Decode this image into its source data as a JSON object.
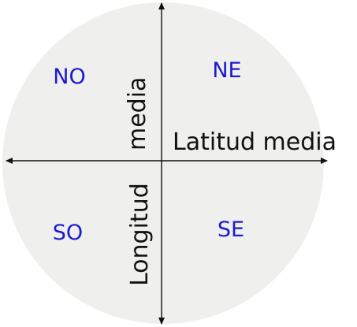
{
  "diagram": {
    "quadrants": {
      "nw": "NO",
      "ne": "NE",
      "sw": "SO",
      "se": "SE"
    },
    "axes": {
      "horizontal_label": "Latitud media",
      "vertical_label_upper": "media",
      "vertical_label_lower": "Longitud"
    },
    "colors": {
      "disc": "#efefee",
      "quadrant_text": "#1a1ad0",
      "axis": "#111111"
    }
  }
}
